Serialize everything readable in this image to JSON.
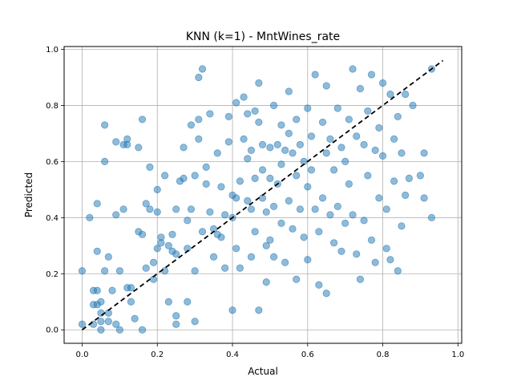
{
  "chart_data": {
    "type": "scatter",
    "title": "KNN (k=1) - MntWines_rate",
    "xlabel": "Actual",
    "ylabel": "Predicted",
    "xlim": [
      -0.048,
      1.01
    ],
    "ylim": [
      -0.048,
      1.01
    ],
    "xticks": [
      0.0,
      0.2,
      0.4,
      0.6,
      0.8,
      1.0
    ],
    "yticks": [
      0.0,
      0.2,
      0.4,
      0.6,
      0.8,
      1.0
    ],
    "xtick_labels": [
      "0.0",
      "0.2",
      "0.4",
      "0.6",
      "0.8",
      "1.0"
    ],
    "ytick_labels": [
      "0.0",
      "0.2",
      "0.4",
      "0.6",
      "0.8",
      "1.0"
    ],
    "grid": true,
    "point_color": "#1f77b4",
    "reference_line": {
      "x": [
        0.0,
        0.96
      ],
      "y": [
        0.0,
        0.96
      ],
      "style": "dashed",
      "color": "#000000"
    },
    "points": [
      [
        0.0,
        0.21
      ],
      [
        0.0,
        0.02
      ],
      [
        0.02,
        0.4
      ],
      [
        0.03,
        0.02
      ],
      [
        0.03,
        0.09
      ],
      [
        0.03,
        0.14
      ],
      [
        0.04,
        0.45
      ],
      [
        0.04,
        0.28
      ],
      [
        0.04,
        0.14
      ],
      [
        0.04,
        0.09
      ],
      [
        0.05,
        0.0
      ],
      [
        0.05,
        0.03
      ],
      [
        0.05,
        0.06
      ],
      [
        0.05,
        0.1
      ],
      [
        0.06,
        0.21
      ],
      [
        0.06,
        0.6
      ],
      [
        0.06,
        0.73
      ],
      [
        0.07,
        0.26
      ],
      [
        0.07,
        0.06
      ],
      [
        0.07,
        0.03
      ],
      [
        0.08,
        0.14
      ],
      [
        0.09,
        0.41
      ],
      [
        0.09,
        0.67
      ],
      [
        0.09,
        0.02
      ],
      [
        0.1,
        0.0
      ],
      [
        0.1,
        0.21
      ],
      [
        0.11,
        0.43
      ],
      [
        0.11,
        0.66
      ],
      [
        0.12,
        0.68
      ],
      [
        0.12,
        0.66
      ],
      [
        0.12,
        0.15
      ],
      [
        0.13,
        0.15
      ],
      [
        0.13,
        0.1
      ],
      [
        0.14,
        0.04
      ],
      [
        0.15,
        0.35
      ],
      [
        0.15,
        0.65
      ],
      [
        0.16,
        0.75
      ],
      [
        0.16,
        0.34
      ],
      [
        0.16,
        0.0
      ],
      [
        0.17,
        0.22
      ],
      [
        0.17,
        0.45
      ],
      [
        0.18,
        0.58
      ],
      [
        0.18,
        0.43
      ],
      [
        0.19,
        0.24
      ],
      [
        0.19,
        0.18
      ],
      [
        0.2,
        0.29
      ],
      [
        0.2,
        0.42
      ],
      [
        0.2,
        0.5
      ],
      [
        0.21,
        0.33
      ],
      [
        0.21,
        0.31
      ],
      [
        0.22,
        0.55
      ],
      [
        0.22,
        0.21
      ],
      [
        0.23,
        0.3
      ],
      [
        0.23,
        0.1
      ],
      [
        0.24,
        0.28
      ],
      [
        0.24,
        0.34
      ],
      [
        0.25,
        0.05
      ],
      [
        0.25,
        0.02
      ],
      [
        0.25,
        0.27
      ],
      [
        0.25,
        0.43
      ],
      [
        0.26,
        0.53
      ],
      [
        0.27,
        0.54
      ],
      [
        0.27,
        0.65
      ],
      [
        0.28,
        0.39
      ],
      [
        0.28,
        0.1
      ],
      [
        0.28,
        0.29
      ],
      [
        0.29,
        0.73
      ],
      [
        0.29,
        0.43
      ],
      [
        0.3,
        0.55
      ],
      [
        0.3,
        0.21
      ],
      [
        0.3,
        0.03
      ],
      [
        0.31,
        0.68
      ],
      [
        0.31,
        0.75
      ],
      [
        0.31,
        0.9
      ],
      [
        0.32,
        0.93
      ],
      [
        0.32,
        0.35
      ],
      [
        0.33,
        0.52
      ],
      [
        0.33,
        0.58
      ],
      [
        0.34,
        0.77
      ],
      [
        0.34,
        0.42
      ],
      [
        0.35,
        0.36
      ],
      [
        0.35,
        0.26
      ],
      [
        0.36,
        0.63
      ],
      [
        0.36,
        0.34
      ],
      [
        0.37,
        0.51
      ],
      [
        0.37,
        0.33
      ],
      [
        0.38,
        0.41
      ],
      [
        0.38,
        0.22
      ],
      [
        0.39,
        0.76
      ],
      [
        0.39,
        0.67
      ],
      [
        0.4,
        0.48
      ],
      [
        0.4,
        0.4
      ],
      [
        0.4,
        0.07
      ],
      [
        0.41,
        0.81
      ],
      [
        0.41,
        0.47
      ],
      [
        0.41,
        0.29
      ],
      [
        0.42,
        0.53
      ],
      [
        0.42,
        0.22
      ],
      [
        0.43,
        0.83
      ],
      [
        0.43,
        0.68
      ],
      [
        0.44,
        0.77
      ],
      [
        0.44,
        0.61
      ],
      [
        0.44,
        0.46
      ],
      [
        0.45,
        0.64
      ],
      [
        0.45,
        0.43
      ],
      [
        0.45,
        0.26
      ],
      [
        0.46,
        0.78
      ],
      [
        0.46,
        0.54
      ],
      [
        0.46,
        0.35
      ],
      [
        0.47,
        0.88
      ],
      [
        0.47,
        0.74
      ],
      [
        0.47,
        0.07
      ],
      [
        0.48,
        0.66
      ],
      [
        0.48,
        0.57
      ],
      [
        0.48,
        0.47
      ],
      [
        0.49,
        0.42
      ],
      [
        0.49,
        0.3
      ],
      [
        0.49,
        0.17
      ],
      [
        0.5,
        0.65
      ],
      [
        0.5,
        0.54
      ],
      [
        0.5,
        0.32
      ],
      [
        0.51,
        0.8
      ],
      [
        0.51,
        0.44
      ],
      [
        0.51,
        0.26
      ],
      [
        0.52,
        0.66
      ],
      [
        0.52,
        0.52
      ],
      [
        0.53,
        0.73
      ],
      [
        0.53,
        0.59
      ],
      [
        0.53,
        0.38
      ],
      [
        0.54,
        0.64
      ],
      [
        0.54,
        0.24
      ],
      [
        0.55,
        0.85
      ],
      [
        0.55,
        0.7
      ],
      [
        0.55,
        0.46
      ],
      [
        0.56,
        0.63
      ],
      [
        0.56,
        0.36
      ],
      [
        0.57,
        0.75
      ],
      [
        0.57,
        0.55
      ],
      [
        0.57,
        0.18
      ],
      [
        0.58,
        0.66
      ],
      [
        0.58,
        0.43
      ],
      [
        0.59,
        0.6
      ],
      [
        0.59,
        0.33
      ],
      [
        0.6,
        0.79
      ],
      [
        0.6,
        0.51
      ],
      [
        0.6,
        0.25
      ],
      [
        0.61,
        0.69
      ],
      [
        0.61,
        0.57
      ],
      [
        0.62,
        0.91
      ],
      [
        0.62,
        0.43
      ],
      [
        0.63,
        0.35
      ],
      [
        0.63,
        0.16
      ],
      [
        0.64,
        0.74
      ],
      [
        0.64,
        0.47
      ],
      [
        0.65,
        0.87
      ],
      [
        0.65,
        0.63
      ],
      [
        0.65,
        0.13
      ],
      [
        0.66,
        0.68
      ],
      [
        0.66,
        0.41
      ],
      [
        0.67,
        0.57
      ],
      [
        0.67,
        0.31
      ],
      [
        0.68,
        0.79
      ],
      [
        0.68,
        0.44
      ],
      [
        0.69,
        0.65
      ],
      [
        0.69,
        0.28
      ],
      [
        0.7,
        0.6
      ],
      [
        0.7,
        0.38
      ],
      [
        0.71,
        0.75
      ],
      [
        0.71,
        0.52
      ],
      [
        0.72,
        0.93
      ],
      [
        0.72,
        0.41
      ],
      [
        0.73,
        0.69
      ],
      [
        0.73,
        0.27
      ],
      [
        0.74,
        0.86
      ],
      [
        0.74,
        0.18
      ],
      [
        0.75,
        0.66
      ],
      [
        0.75,
        0.39
      ],
      [
        0.76,
        0.78
      ],
      [
        0.76,
        0.55
      ],
      [
        0.77,
        0.91
      ],
      [
        0.77,
        0.32
      ],
      [
        0.78,
        0.64
      ],
      [
        0.78,
        0.24
      ],
      [
        0.79,
        0.72
      ],
      [
        0.79,
        0.47
      ],
      [
        0.8,
        0.88
      ],
      [
        0.8,
        0.62
      ],
      [
        0.81,
        0.43
      ],
      [
        0.81,
        0.29
      ],
      [
        0.82,
        0.84
      ],
      [
        0.82,
        0.25
      ],
      [
        0.83,
        0.68
      ],
      [
        0.83,
        0.53
      ],
      [
        0.84,
        0.76
      ],
      [
        0.84,
        0.21
      ],
      [
        0.85,
        0.63
      ],
      [
        0.85,
        0.37
      ],
      [
        0.86,
        0.84
      ],
      [
        0.86,
        0.48
      ],
      [
        0.87,
        0.54
      ],
      [
        0.88,
        0.8
      ],
      [
        0.9,
        0.55
      ],
      [
        0.91,
        0.47
      ],
      [
        0.91,
        0.63
      ],
      [
        0.93,
        0.4
      ],
      [
        0.93,
        0.93
      ]
    ]
  }
}
